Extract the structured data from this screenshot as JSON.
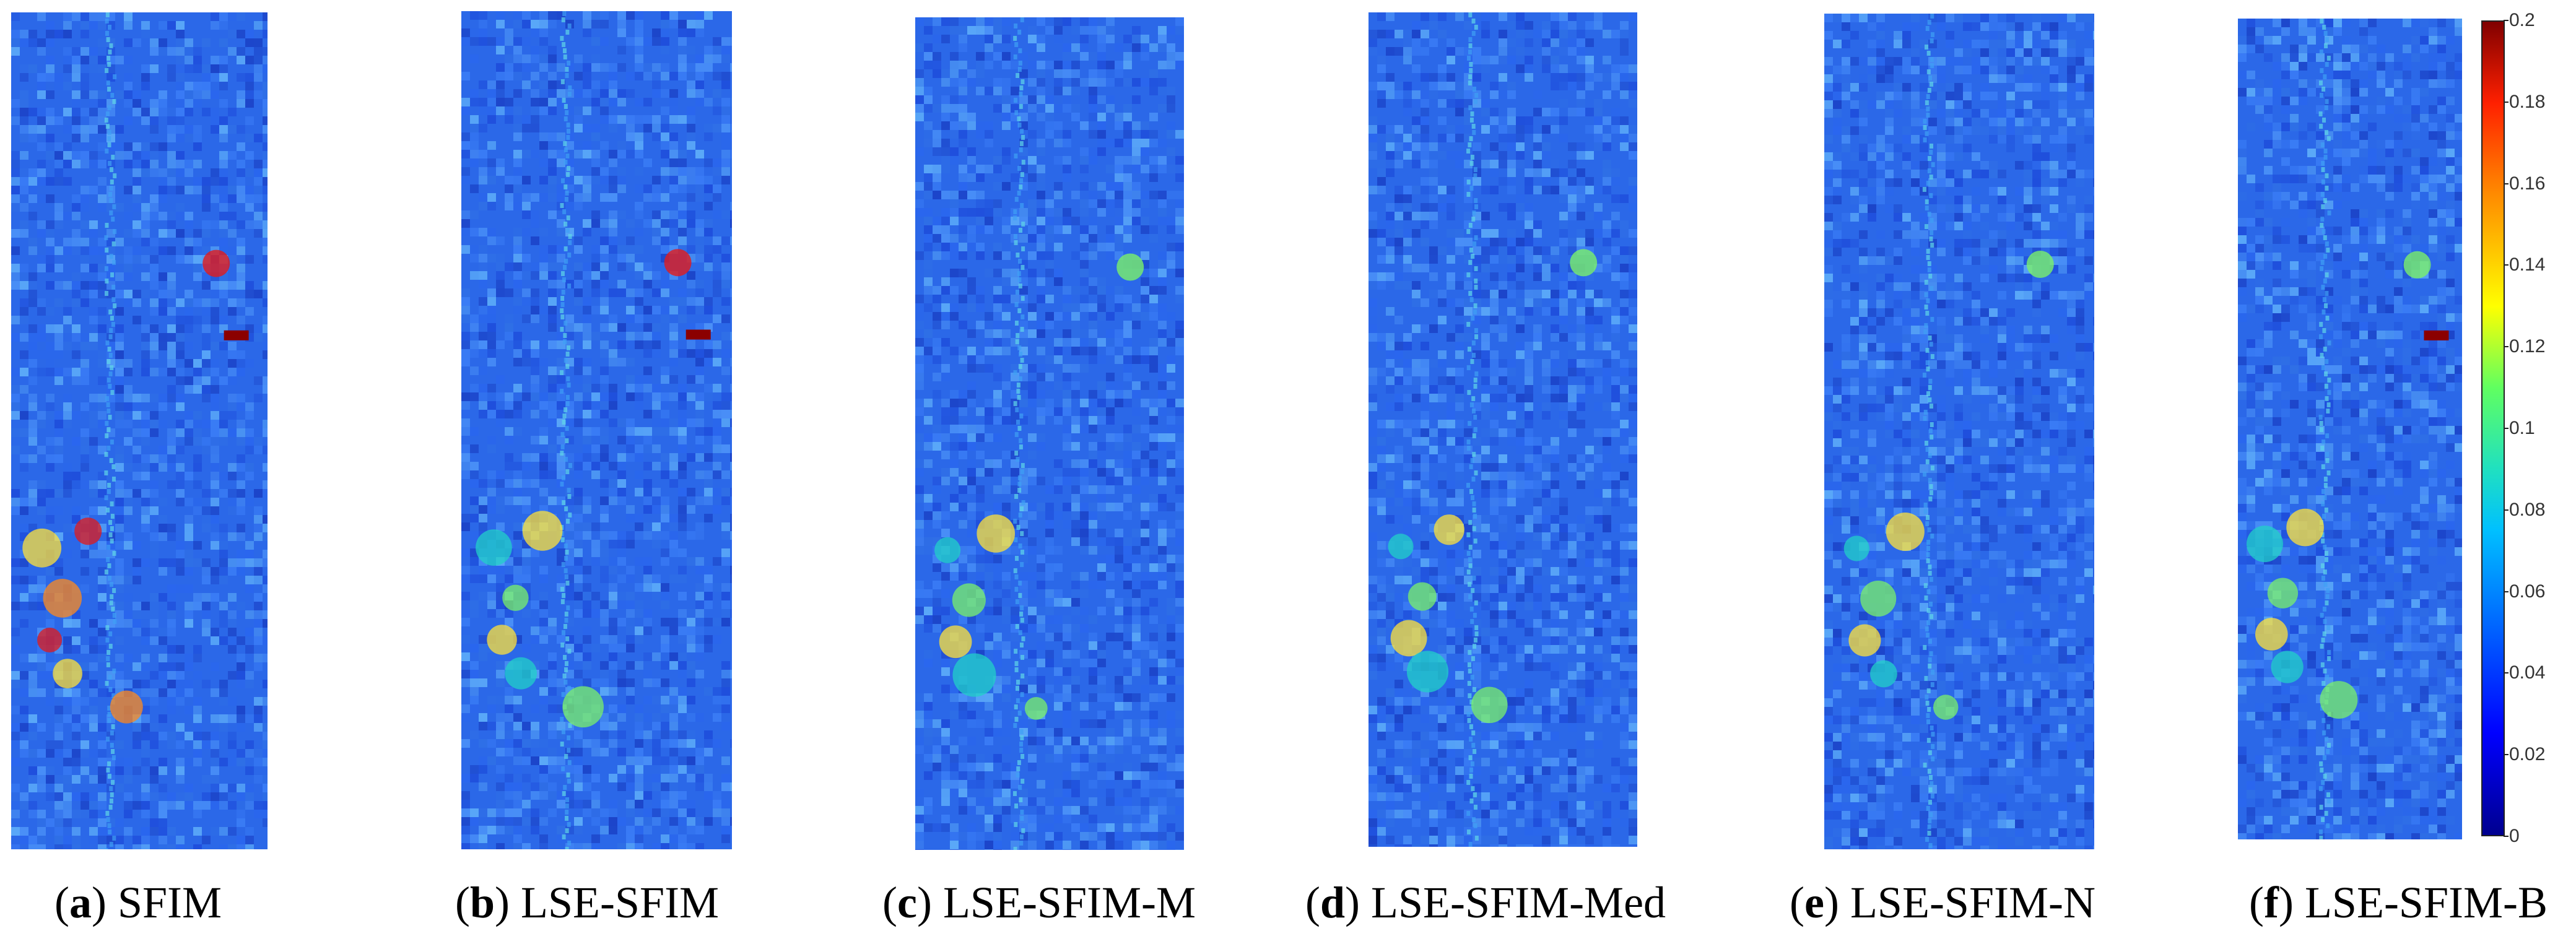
{
  "panels": [
    {
      "letter": "a",
      "label": "SFIM"
    },
    {
      "letter": "b",
      "label": "LSE-SFIM"
    },
    {
      "letter": "c",
      "label": "LSE-SFIM-M"
    },
    {
      "letter": "d",
      "label": "LSE-SFIM-Med"
    },
    {
      "letter": "e",
      "label": "LSE-SFIM-N"
    },
    {
      "letter": "f",
      "label": "LSE-SFIM-B"
    }
  ],
  "colorbar": {
    "colormap": "jet",
    "range": [
      0,
      0.2
    ],
    "ticks": [
      "0.2",
      "0.18",
      "0.16",
      "0.14",
      "0.12",
      "0.1",
      "0.08",
      "0.06",
      "0.04",
      "0.02",
      "0"
    ]
  }
}
